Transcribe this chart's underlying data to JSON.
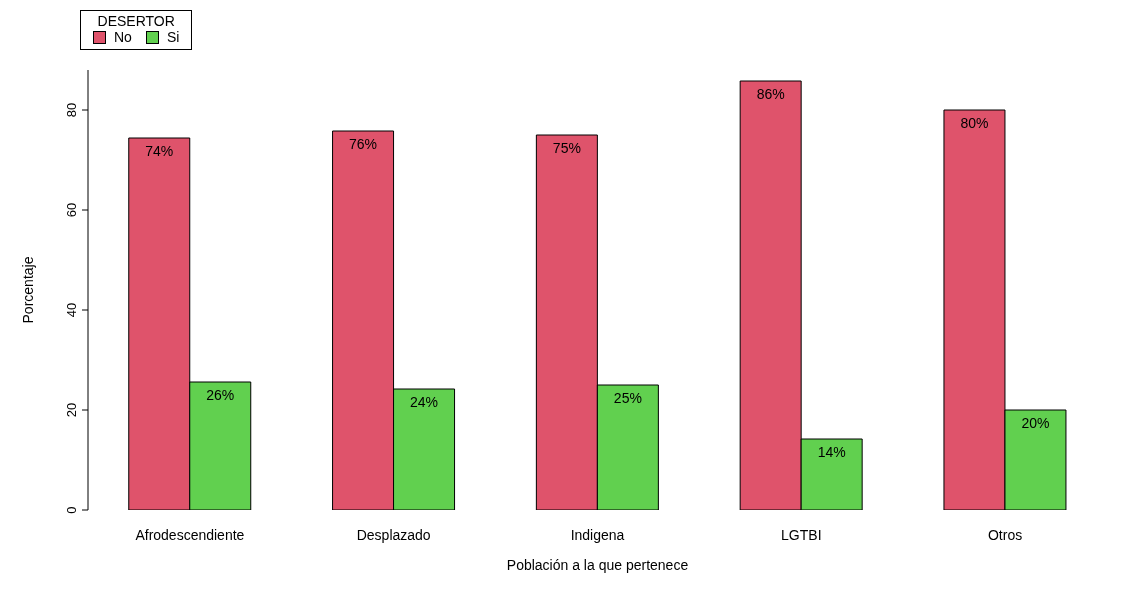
{
  "chart_data": {
    "type": "bar",
    "xlabel": "Población a la que pertenece",
    "ylabel": "Porcentaje",
    "legend_title": "DESERTOR",
    "categories": [
      "Afrodescendiente",
      "Desplazado",
      "Indigena",
      "LGTBI",
      "Otros"
    ],
    "series": [
      {
        "name": "No",
        "color": "#df536b",
        "values": [
          74.4,
          75.8,
          75,
          85.8,
          80
        ],
        "value_labels": [
          "74%",
          "76%",
          "75%",
          "86%",
          "80%"
        ]
      },
      {
        "name": "Si",
        "color": "#61d04f",
        "values": [
          25.6,
          24.2,
          25,
          14.2,
          20
        ],
        "value_labels": [
          "26%",
          "24%",
          "25%",
          "14%",
          "20%"
        ]
      }
    ],
    "ylim": [
      0,
      88
    ],
    "yticks": [
      0,
      20,
      40,
      60,
      80
    ],
    "grid": false,
    "legend": "top left"
  }
}
